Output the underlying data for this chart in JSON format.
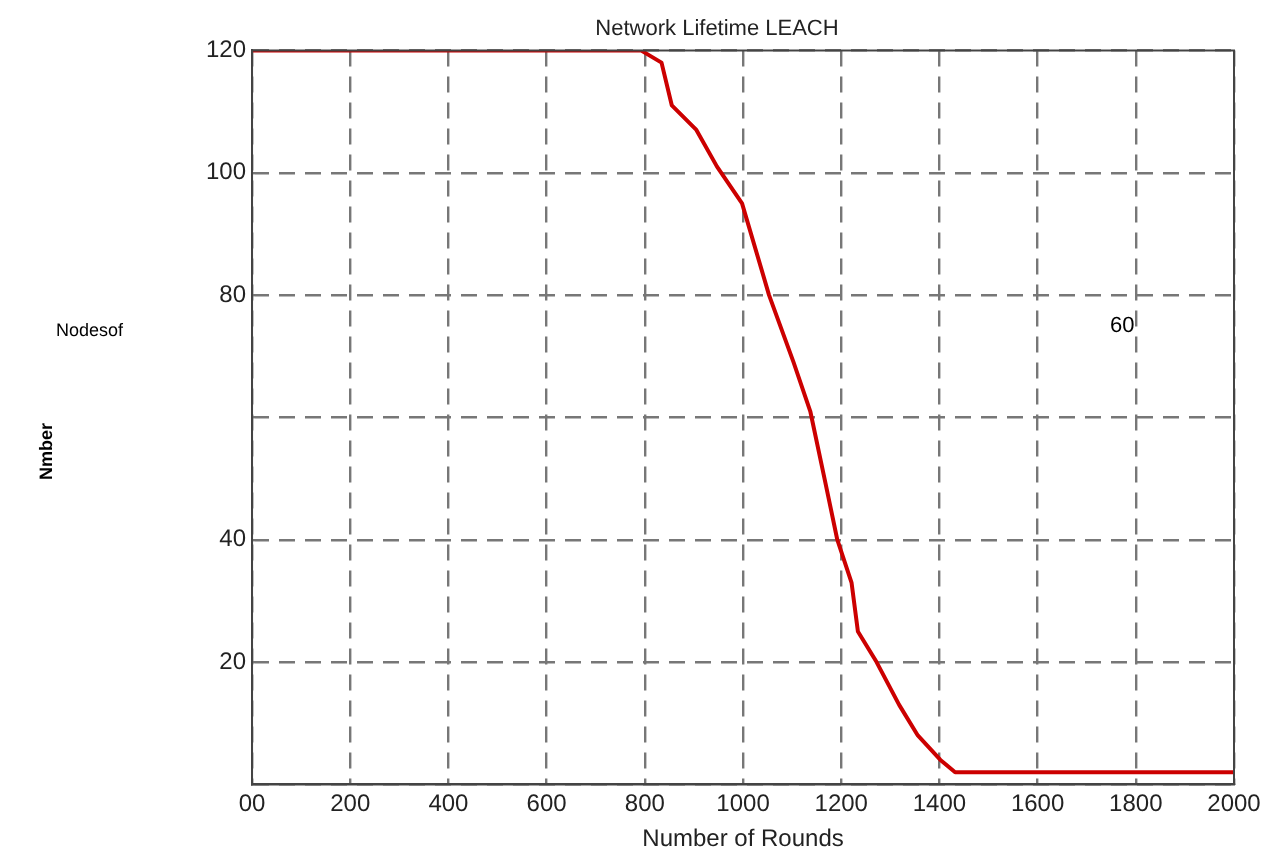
{
  "chart_data": {
    "type": "line",
    "title": "Network Lifetime LEACH",
    "xlabel": "Number of Rounds",
    "annotations": [
      "Nodesof",
      "Nmber",
      "60"
    ],
    "xlim": [
      0,
      2000
    ],
    "xticks": [
      {
        "value": 0,
        "label": "00"
      },
      200,
      400,
      600,
      800,
      1000,
      1200,
      1400,
      1600,
      1800,
      2000
    ],
    "ylim": [
      0,
      120
    ],
    "yticks": [
      {
        "value": 0,
        "label": null
      },
      20,
      40,
      {
        "value": 60,
        "label": null
      },
      80,
      100,
      120
    ],
    "grid": true,
    "line_style": "solid",
    "marker": "none",
    "series": [
      {
        "color": "#cc0000",
        "x": [
          0,
          792,
          834,
          855,
          905,
          947,
          998,
          1053,
          1103,
          1137,
          1166,
          1192,
          1221,
          1234,
          1272,
          1318,
          1356,
          1402,
          1432,
          2000
        ],
        "values": [
          120,
          120,
          118,
          111,
          107,
          101,
          95,
          80,
          69,
          61,
          50,
          40,
          33,
          25,
          20,
          13,
          8,
          4,
          2,
          2
        ]
      }
    ]
  }
}
